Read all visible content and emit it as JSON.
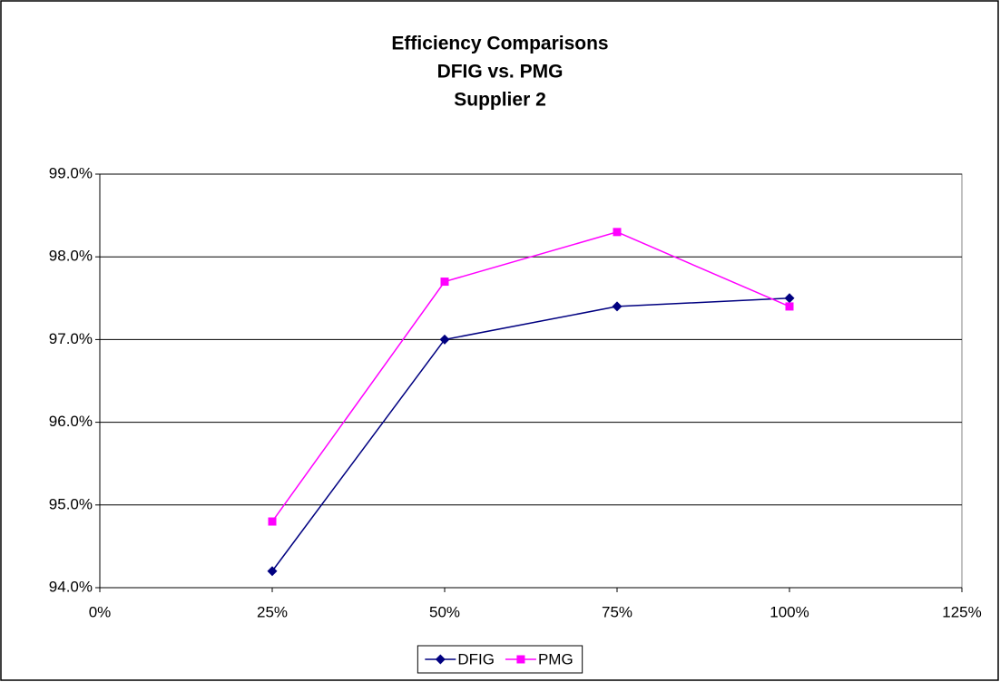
{
  "chart_data": {
    "type": "line",
    "title": [
      "Efficiency Comparisons",
      "DFIG vs. PMG",
      "Supplier 2"
    ],
    "x": [
      25,
      50,
      75,
      100
    ],
    "series": [
      {
        "name": "DFIG",
        "color": "#000080",
        "marker": "diamond",
        "values": [
          94.2,
          97.0,
          97.4,
          97.5
        ]
      },
      {
        "name": "PMG",
        "color": "#ff00ff",
        "marker": "square",
        "values": [
          94.8,
          97.7,
          98.3,
          97.4
        ]
      }
    ],
    "xlim": [
      0,
      125
    ],
    "xticks": [
      {
        "value": 0,
        "label": "0%"
      },
      {
        "value": 25,
        "label": "25%"
      },
      {
        "value": 50,
        "label": "50%"
      },
      {
        "value": 75,
        "label": "75%"
      },
      {
        "value": 100,
        "label": "100%"
      },
      {
        "value": 125,
        "label": "125%"
      }
    ],
    "ylim": [
      94,
      99
    ],
    "yticks": [
      {
        "value": 94,
        "label": "94.0%"
      },
      {
        "value": 95,
        "label": "95.0%"
      },
      {
        "value": 96,
        "label": "96.0%"
      },
      {
        "value": 97,
        "label": "97.0%"
      },
      {
        "value": 98,
        "label": "98.0%"
      },
      {
        "value": 99,
        "label": "99.0%"
      }
    ],
    "grid": true,
    "legend": "bottom"
  }
}
